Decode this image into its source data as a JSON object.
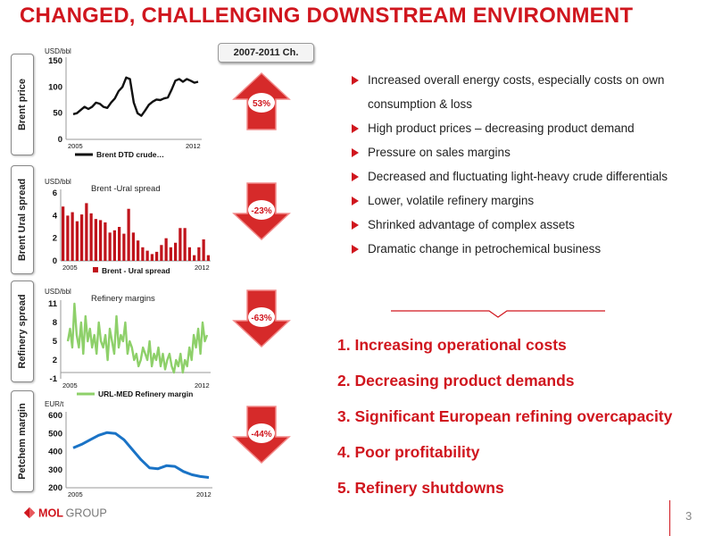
{
  "title": "CHANGED, CHALLENGING DOWNSTREAM ENVIRONMENT",
  "badge": "2007-2011 Ch.",
  "side_tabs": [
    "Brent price",
    "Brent Ural spread",
    "Refinery spread",
    "Petchem margin"
  ],
  "changes": [
    {
      "value": "53%",
      "direction": "up"
    },
    {
      "value": "-23%",
      "direction": "down"
    },
    {
      "value": "-63%",
      "direction": "down"
    },
    {
      "value": "-44%",
      "direction": "down"
    }
  ],
  "bullets": [
    "Increased overall energy costs, especially costs on own consumption & loss",
    "High product prices – decreasing product demand",
    "Pressure on sales margins",
    "Decreased and fluctuating light-heavy crude differentials",
    "Lower, volatile refinery margins",
    "Shrinked advantage of complex assets",
    "Dramatic change in petrochemical business"
  ],
  "conclusions": [
    "1. Increasing operational costs",
    "2. Decreasing product demands",
    "3. Significant European refining overcapacity",
    "4. Poor profitability",
    "5. Refinery shutdowns"
  ],
  "logo": {
    "mol": "MOL",
    "group": "GROUP"
  },
  "page_number": "3",
  "colors": {
    "accent": "#d0161e",
    "green": "#8ed06a",
    "blue": "#1a73c6",
    "dark": "#111111"
  },
  "chart_data": [
    {
      "type": "line",
      "title": "",
      "unit": "USD/bbl",
      "x_start_label": "2005",
      "x_end_label": "2012",
      "ylim": [
        0,
        150
      ],
      "yticks": [
        0,
        50,
        100,
        150
      ],
      "legend": "Brent DTD crude…",
      "color": "#111111",
      "values": [
        48,
        50,
        56,
        62,
        58,
        62,
        70,
        68,
        62,
        60,
        70,
        78,
        92,
        100,
        118,
        115,
        70,
        50,
        45,
        55,
        66,
        72,
        76,
        75,
        78,
        80,
        95,
        112,
        115,
        110,
        115,
        112,
        108,
        110
      ]
    },
    {
      "type": "bar",
      "title": "Brent -Ural spread",
      "unit": "USD/bbl",
      "x_start_label": "2005",
      "x_end_label": "2012",
      "ylim": [
        0,
        6
      ],
      "yticks": [
        0,
        2,
        4,
        6
      ],
      "legend": "Brent - Ural spread",
      "color": "#c0141c",
      "values": [
        4.8,
        4.0,
        4.3,
        3.5,
        4.1,
        5.1,
        4.2,
        3.7,
        3.6,
        3.4,
        2.5,
        2.7,
        3.0,
        2.4,
        4.6,
        2.5,
        1.8,
        1.2,
        0.9,
        0.6,
        0.8,
        1.4,
        2.0,
        1.2,
        1.6,
        2.9,
        2.9,
        1.2,
        0.5,
        1.2,
        1.9,
        0.5
      ]
    },
    {
      "type": "line",
      "title": "Refinery margins",
      "unit": "USD/bbl",
      "x_start_label": "2005",
      "x_end_label": "2012",
      "ylim": [
        -1,
        11
      ],
      "yticks": [
        -1,
        2,
        5,
        8,
        11
      ],
      "legend": "URL-MED Refinery margin",
      "color": "#8ed06a",
      "values": [
        5,
        7,
        4,
        11,
        6,
        4,
        8,
        3,
        9,
        5,
        7,
        4,
        6,
        3,
        8,
        5,
        4,
        6,
        2,
        7,
        5,
        3,
        9,
        4,
        6,
        5,
        8,
        3,
        5,
        4,
        2,
        3,
        1,
        2,
        4,
        3,
        2,
        5,
        1,
        3,
        2,
        4,
        1,
        3,
        0.5,
        2,
        3,
        1,
        0,
        2,
        1,
        3,
        0,
        2,
        1,
        4,
        2,
        6,
        4,
        7,
        3,
        8,
        5,
        6
      ]
    },
    {
      "type": "line",
      "title": "",
      "unit": "EUR/t",
      "x_start_label": "2005",
      "x_end_label": "2012",
      "ylim": [
        200,
        600
      ],
      "yticks": [
        200,
        300,
        400,
        500,
        600
      ],
      "legend": "",
      "color": "#1a73c6",
      "values": [
        420,
        440,
        465,
        490,
        505,
        500,
        465,
        410,
        355,
        310,
        305,
        322,
        318,
        290,
        272,
        262,
        257
      ]
    }
  ]
}
